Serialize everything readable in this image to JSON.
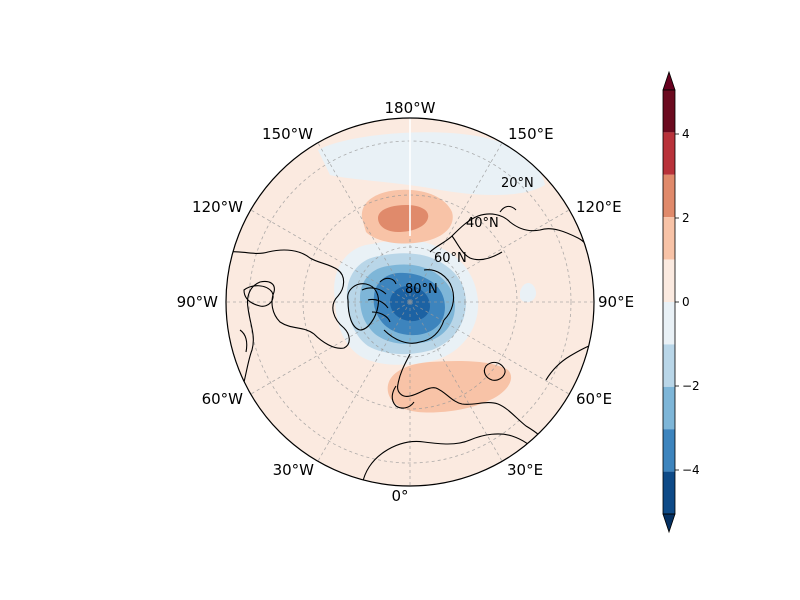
{
  "map": {
    "projection": "north-polar-stereographic",
    "longitude_labels": [
      "180°W",
      "150°E",
      "120°E",
      "90°E",
      "60°E",
      "30°E",
      "0°",
      "30°W",
      "60°W",
      "90°W",
      "120°W",
      "150°W"
    ],
    "latitude_labels": [
      "20°N",
      "40°N",
      "60°N",
      "80°N"
    ],
    "features": [
      "coastlines",
      "filled-contours",
      "dashed-graticule"
    ],
    "anomaly_regions": [
      {
        "name": "north-pacific",
        "sign": "positive",
        "peak": 3
      },
      {
        "name": "europe",
        "sign": "positive",
        "peak": 2
      },
      {
        "name": "arctic-polar-cap",
        "sign": "negative",
        "peak": -4
      },
      {
        "name": "bering-strait",
        "sign": "negative",
        "peak": -1
      }
    ]
  },
  "colorbar": {
    "ticks": [
      "4",
      "2",
      "0",
      "−2",
      "−4"
    ],
    "extend": "both",
    "levels": [
      {
        "range": [
          4,
          5
        ],
        "color": "#6b0a1f"
      },
      {
        "range": [
          3,
          4
        ],
        "color": "#b8323a"
      },
      {
        "range": [
          2,
          3
        ],
        "color": "#e08a6b"
      },
      {
        "range": [
          1,
          2
        ],
        "color": "#f8c3a7"
      },
      {
        "range": [
          0,
          1
        ],
        "color": "#fbeae0"
      },
      {
        "range": [
          -1,
          0
        ],
        "color": "#e9f1f6"
      },
      {
        "range": [
          -2,
          -1
        ],
        "color": "#b9d6e8"
      },
      {
        "range": [
          -3,
          -2
        ],
        "color": "#7eb6d8"
      },
      {
        "range": [
          -4,
          -3
        ],
        "color": "#3d84bd"
      },
      {
        "range": [
          -5,
          -4
        ],
        "color": "#0e4a87"
      }
    ],
    "over_color": "#67001f",
    "under_color": "#053061"
  }
}
